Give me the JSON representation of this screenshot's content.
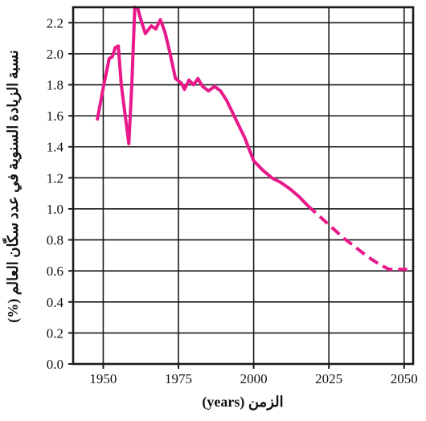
{
  "chart_data": {
    "type": "line",
    "xlabel": "الزمن (years)",
    "ylabel": "نسبة الزيادة السنوية في عدد سكّان العالم (%)",
    "xlim": [
      1940,
      2053
    ],
    "ylim": [
      0,
      2.3
    ],
    "x_ticks": [
      1950,
      1975,
      2000,
      2025,
      2050
    ],
    "y_ticks": [
      0.0,
      0.2,
      0.4,
      0.6,
      0.8,
      1.0,
      1.2,
      1.4,
      1.6,
      1.8,
      2.0,
      2.2
    ],
    "x_tick_labels": [
      "1950",
      "1975",
      "2000",
      "2025",
      "2050"
    ],
    "y_tick_labels": [
      "0.0",
      "0.2",
      "0.4",
      "0.6",
      "0.8",
      "1.0",
      "1.2",
      "1.4",
      "1.6",
      "1.8",
      "2.0",
      "2.2"
    ],
    "grid": true,
    "series": [
      {
        "style": "solid",
        "color": "#e8198b",
        "x": [
          1948,
          1950,
          1952,
          1953,
          1954,
          1955,
          1956,
          1957,
          1958.5,
          1959.5,
          1960.5,
          1961.5,
          1962.5,
          1964,
          1966,
          1967.5,
          1969,
          1970.5,
          1972,
          1974,
          1976,
          1977,
          1978.5,
          1980,
          1981.5,
          1983,
          1985,
          1987,
          1989,
          1991,
          1994,
          1997,
          2000,
          2003,
          2006,
          2009,
          2012,
          2015,
          2018
        ],
        "y": [
          1.57,
          1.78,
          1.97,
          1.98,
          2.04,
          2.05,
          1.8,
          1.65,
          1.42,
          1.8,
          2.3,
          2.29,
          2.22,
          2.13,
          2.18,
          2.16,
          2.22,
          2.14,
          2.02,
          1.84,
          1.81,
          1.77,
          1.83,
          1.8,
          1.84,
          1.79,
          1.76,
          1.79,
          1.76,
          1.7,
          1.58,
          1.46,
          1.31,
          1.25,
          1.2,
          1.17,
          1.13,
          1.08,
          1.02
        ]
      },
      {
        "style": "dashed",
        "color": "#e8198b",
        "x": [
          2018,
          2022,
          2026,
          2030,
          2034,
          2038,
          2042,
          2045,
          2048,
          2051
        ],
        "y": [
          1.02,
          0.95,
          0.88,
          0.81,
          0.75,
          0.69,
          0.64,
          0.61,
          0.61,
          0.61
        ]
      }
    ]
  }
}
